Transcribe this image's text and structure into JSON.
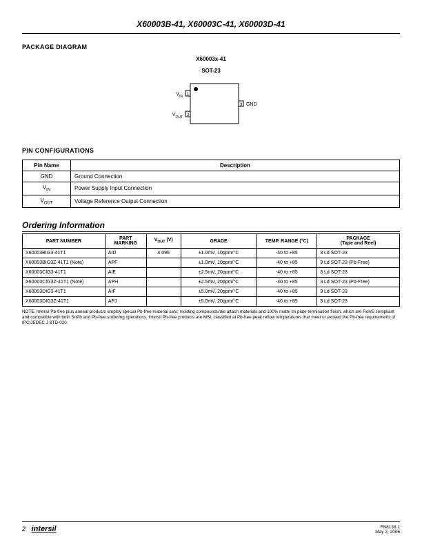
{
  "header": "X60003B-41, X60003C-41, X60003D-41",
  "sections": {
    "packageDiagram": "PACKAGE DIAGRAM",
    "pinConfigs": "PIN CONFIGURATIONS",
    "ordering": "Ordering Information"
  },
  "diagram": {
    "partLabel": "X60003x-41",
    "pkgType": "SOT-23",
    "vin": "V_IN",
    "vout": "V_OUT",
    "gnd": "GND",
    "pin1": "1",
    "pin2": "2",
    "pin3": "3"
  },
  "pinTable": {
    "headers": [
      "Pin Name",
      "Description"
    ],
    "rows": [
      {
        "name": "GND",
        "desc": "Ground Connection"
      },
      {
        "name": "V_IN",
        "desc": "Power Supply Input Connection"
      },
      {
        "name": "V_OUT",
        "desc": "Voltage Reference Output Connection"
      }
    ]
  },
  "orderingTable": {
    "headers": [
      "PART NUMBER",
      "PART MARKING",
      "V_OUT (V)",
      "GRADE",
      "TEMP. RANGE (°C)",
      "PACKAGE (Tape and Reel)"
    ],
    "rows": [
      {
        "pn": "X60003BIG3-41T1",
        "pm": "AID",
        "vout": "4.096",
        "grade": "±1.0mV, 10ppm/°C",
        "temp": "-40 to +85",
        "pkg": "3 Ld SOT-23"
      },
      {
        "pn": "X60003BIG3Z-41T1 (Note)",
        "pm": "APF",
        "vout": "",
        "grade": "±1.0mV, 10ppm/°C",
        "temp": "-40 to +85",
        "pkg": "3 Ld SOT-23 (Pb-Free)"
      },
      {
        "pn": "X60003CIG3-41T1",
        "pm": "AIE",
        "vout": "",
        "grade": "±2.5mV, 20ppm/°C",
        "temp": "-40 to +85",
        "pkg": "3 Ld SOT-23"
      },
      {
        "pn": "X60003CIG3Z-41T1 (Note)",
        "pm": "APH",
        "vout": "",
        "grade": "±2.5mV, 20ppm/°C",
        "temp": "-40 to +85",
        "pkg": "3 Ld SOT-23 (Pb-Free)"
      },
      {
        "pn": "X60003DIG3-41T1",
        "pm": "AIF",
        "vout": "",
        "grade": "±5.0mV, 20ppm/°C",
        "temp": "-40 to +85",
        "pkg": "3 Ld SOT-23"
      },
      {
        "pn": "X60003DIG3Z-41T1",
        "pm": "APJ",
        "vout": "",
        "grade": "±5.0mV, 20ppm/°C",
        "temp": "-40 to +85",
        "pkg": "3 Ld SOT-23"
      }
    ],
    "colWidths": [
      "120px",
      "60px",
      "50px",
      "110px",
      "88px",
      "120px"
    ]
  },
  "note": "NOTE: Intersil Pb-free plus anneal products employ special Pb-free material sets; molding compounds/die attach materials and 100% matte tin plate termination finish, which are RoHS compliant and compatible with both SnPb and Pb-free soldering operations. Intersil Pb-free products are MSL classified at Pb-free peak reflow temperatures that meet or exceed the Pb-free requirements of IPC/JEDEC J STD-020.",
  "footer": {
    "pageNum": "2",
    "brand": "intersil",
    "docNum": "FN8138.1",
    "date": "May 2, 2006"
  }
}
